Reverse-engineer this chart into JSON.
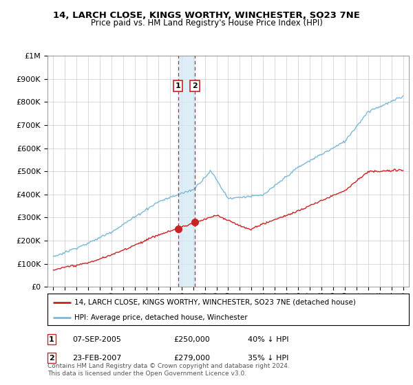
{
  "title": "14, LARCH CLOSE, KINGS WORTHY, WINCHESTER, SO23 7NE",
  "subtitle": "Price paid vs. HM Land Registry's House Price Index (HPI)",
  "legend_line1": "14, LARCH CLOSE, KINGS WORTHY, WINCHESTER, SO23 7NE (detached house)",
  "legend_line2": "HPI: Average price, detached house, Winchester",
  "transaction1_date": "07-SEP-2005",
  "transaction1_price": "£250,000",
  "transaction1_hpi": "40% ↓ HPI",
  "transaction2_date": "23-FEB-2007",
  "transaction2_price": "£279,000",
  "transaction2_hpi": "35% ↓ HPI",
  "footer": "Contains HM Land Registry data © Crown copyright and database right 2024.\nThis data is licensed under the Open Government Licence v3.0.",
  "hpi_color": "#7ab8d9",
  "price_color": "#cc2222",
  "vline_color": "#cc2222",
  "background_color": "#ffffff",
  "ylim": [
    0,
    1000000
  ],
  "yticks": [
    0,
    100000,
    200000,
    300000,
    400000,
    500000,
    600000,
    700000,
    800000,
    900000,
    1000000
  ],
  "ytick_labels": [
    "£0",
    "£100K",
    "£200K",
    "£300K",
    "£400K",
    "£500K",
    "£600K",
    "£700K",
    "£800K",
    "£900K",
    "£1M"
  ],
  "transaction1_x": 2005.69,
  "transaction2_x": 2007.14,
  "transaction1_y": 250000,
  "transaction2_y": 279000,
  "grid_color": "#cccccc",
  "shade_color": "#d0e8f5",
  "xmin": 1994.5,
  "xmax": 2025.5
}
